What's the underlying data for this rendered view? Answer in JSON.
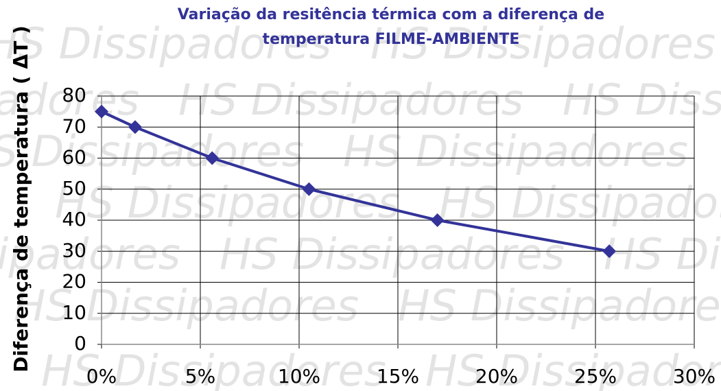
{
  "watermark": "HS Dissipadores",
  "chart_data": {
    "type": "line",
    "title": [
      "Variação da resitência térmica com a diferença de",
      "temperatura FILME-AMBIENTE"
    ],
    "y_label": "Diferença de temperatura ( ΔT )",
    "x": [
      0,
      1.7,
      5.6,
      10.5,
      17,
      25.7
    ],
    "series": [
      {
        "name": "ΔT",
        "color": "#333399",
        "values": [
          75,
          70,
          60,
          50,
          40,
          30
        ]
      }
    ],
    "xlim": [
      0,
      30
    ],
    "xticks": [
      {
        "value": 0,
        "label": "0%"
      },
      {
        "value": 5,
        "label": "5%"
      },
      {
        "value": 10,
        "label": "10%"
      },
      {
        "value": 15,
        "label": "15%"
      },
      {
        "value": 20,
        "label": "20%"
      },
      {
        "value": 25,
        "label": "25%"
      },
      {
        "value": 30,
        "label": "30%"
      }
    ],
    "ylim": [
      0,
      80
    ],
    "yticks": [
      0,
      10,
      20,
      30,
      40,
      50,
      60,
      70,
      80
    ],
    "grid": true
  }
}
